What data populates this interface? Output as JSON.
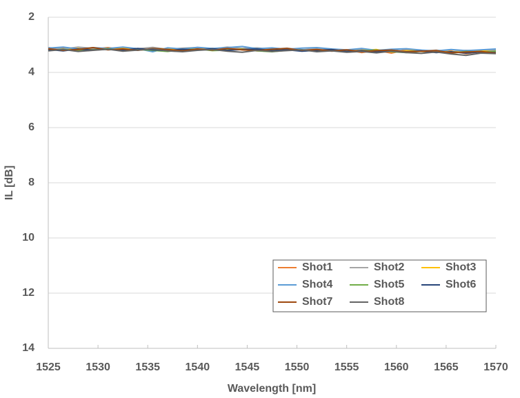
{
  "chart_data": {
    "type": "line",
    "xlabel": "Wavelength [nm]",
    "ylabel": "IL [dB]",
    "x": [
      1525,
      1526.5,
      1528,
      1529.5,
      1531,
      1532.5,
      1534,
      1535.5,
      1537,
      1538.5,
      1540,
      1541.5,
      1543,
      1544.5,
      1546,
      1547.5,
      1549,
      1550.5,
      1552,
      1553.5,
      1555,
      1556.5,
      1558,
      1559.5,
      1561,
      1562.5,
      1564,
      1565.5,
      1567,
      1568.5,
      1570
    ],
    "series": [
      {
        "name": "Shot1",
        "color": "#ED7D31",
        "values": [
          3.18,
          3.12,
          3.2,
          3.15,
          3.1,
          3.17,
          3.14,
          3.21,
          3.16,
          3.13,
          3.19,
          3.15,
          3.12,
          3.18,
          3.2,
          3.14,
          3.17,
          3.21,
          3.16,
          3.23,
          3.19,
          3.28,
          3.2,
          3.3,
          3.18,
          3.24,
          3.27,
          3.22,
          3.32,
          3.25,
          3.2
        ]
      },
      {
        "name": "Shot2",
        "color": "#A5A5A5",
        "values": [
          3.1,
          3.15,
          3.08,
          3.13,
          3.17,
          3.1,
          3.14,
          3.09,
          3.16,
          3.12,
          3.1,
          3.15,
          3.08,
          3.13,
          3.11,
          3.16,
          3.12,
          3.18,
          3.14,
          3.17,
          3.2,
          3.15,
          3.22,
          3.18,
          3.16,
          3.23,
          3.19,
          3.25,
          3.2,
          3.22,
          3.18
        ]
      },
      {
        "name": "Shot3",
        "color": "#FFC000",
        "values": [
          3.15,
          3.2,
          3.13,
          3.18,
          3.15,
          3.12,
          3.19,
          3.16,
          3.14,
          3.2,
          3.17,
          3.13,
          3.18,
          3.15,
          3.2,
          3.17,
          3.14,
          3.19,
          3.22,
          3.18,
          3.24,
          3.2,
          3.17,
          3.26,
          3.22,
          3.2,
          3.27,
          3.24,
          3.28,
          3.22,
          3.25
        ]
      },
      {
        "name": "Shot4",
        "color": "#5B9BD5",
        "values": [
          3.12,
          3.08,
          3.15,
          3.1,
          3.13,
          3.08,
          3.14,
          3.25,
          3.11,
          3.15,
          3.09,
          3.13,
          3.1,
          3.06,
          3.14,
          3.11,
          3.16,
          3.12,
          3.1,
          3.15,
          3.18,
          3.13,
          3.2,
          3.16,
          3.14,
          3.19,
          3.22,
          3.17,
          3.21,
          3.18,
          3.15
        ]
      },
      {
        "name": "Shot5",
        "color": "#70AD47",
        "values": [
          3.2,
          3.16,
          3.22,
          3.18,
          3.14,
          3.21,
          3.17,
          3.2,
          3.24,
          3.18,
          3.15,
          3.21,
          3.19,
          3.16,
          3.22,
          3.25,
          3.2,
          3.18,
          3.23,
          3.2,
          3.26,
          3.22,
          3.19,
          3.25,
          3.28,
          3.23,
          3.26,
          3.3,
          3.24,
          3.27,
          3.23
        ]
      },
      {
        "name": "Shot6",
        "color": "#264478",
        "values": [
          3.17,
          3.22,
          3.15,
          3.19,
          3.16,
          3.2,
          3.13,
          3.18,
          3.21,
          3.16,
          3.19,
          3.14,
          3.2,
          3.17,
          3.15,
          3.21,
          3.18,
          3.23,
          3.2,
          3.17,
          3.24,
          3.21,
          3.26,
          3.2,
          3.25,
          3.22,
          3.28,
          3.25,
          3.3,
          3.26,
          3.28
        ]
      },
      {
        "name": "Shot7",
        "color": "#9E480E",
        "values": [
          3.14,
          3.2,
          3.17,
          3.1,
          3.18,
          3.15,
          3.2,
          3.13,
          3.17,
          3.22,
          3.15,
          3.19,
          3.13,
          3.18,
          3.21,
          3.16,
          3.13,
          3.2,
          3.17,
          3.22,
          3.18,
          3.25,
          3.21,
          3.19,
          3.26,
          3.23,
          3.21,
          3.29,
          3.26,
          3.24,
          3.3
        ]
      },
      {
        "name": "Shot8",
        "color": "#636363",
        "values": [
          3.22,
          3.17,
          3.24,
          3.2,
          3.16,
          3.23,
          3.19,
          3.15,
          3.22,
          3.25,
          3.2,
          3.17,
          3.23,
          3.27,
          3.2,
          3.24,
          3.21,
          3.18,
          3.25,
          3.22,
          3.27,
          3.24,
          3.29,
          3.23,
          3.28,
          3.31,
          3.26,
          3.33,
          3.38,
          3.3,
          3.32
        ]
      }
    ],
    "xlim": [
      1525,
      1570
    ],
    "xticks": [
      1525,
      1530,
      1535,
      1540,
      1545,
      1550,
      1555,
      1560,
      1565,
      1570
    ],
    "ylim": [
      2,
      14
    ],
    "yticks": [
      2,
      4,
      6,
      8,
      10,
      12,
      14
    ],
    "y_inverted": true,
    "grid": true,
    "legend": "lower right"
  }
}
